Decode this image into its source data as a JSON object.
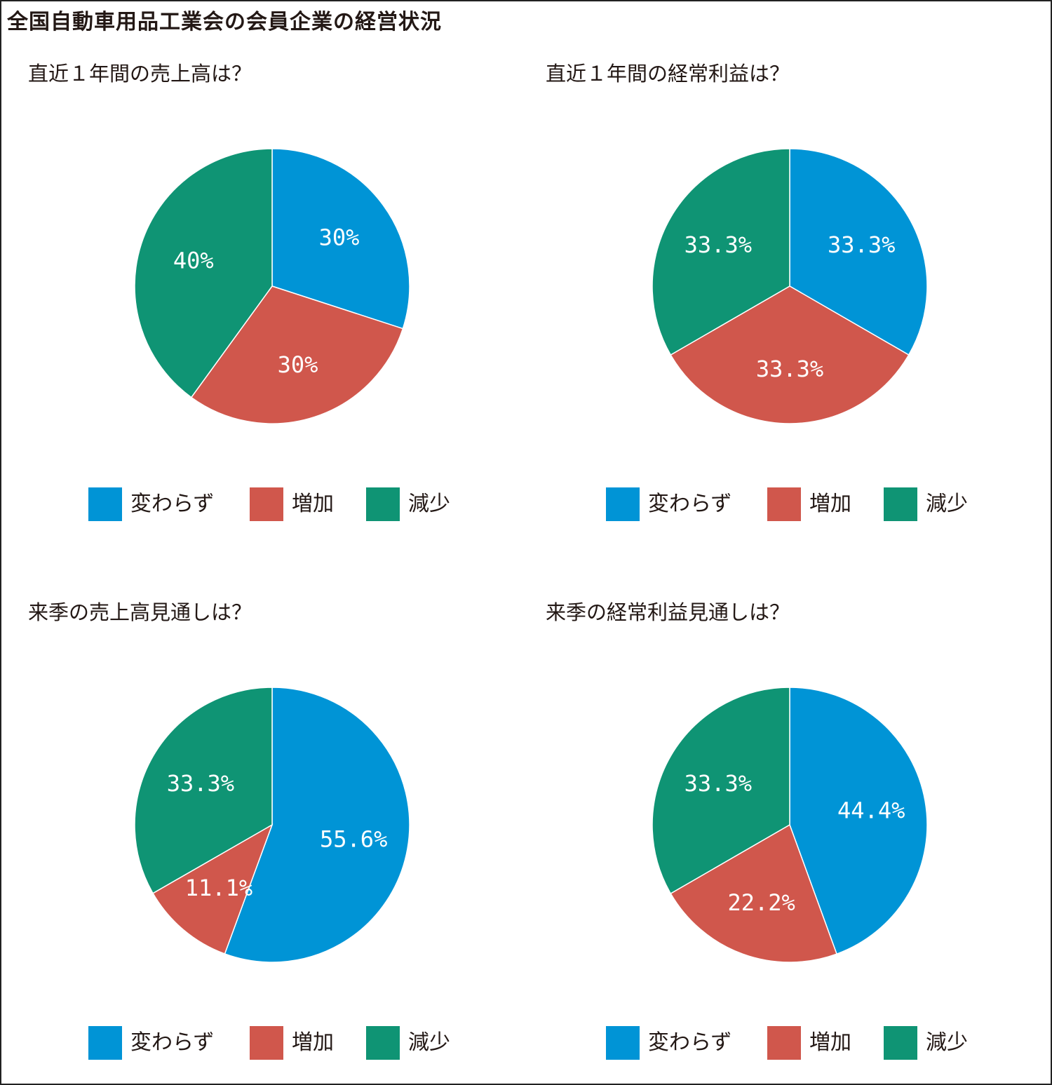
{
  "title": "全国自動車用品工業会の会員企業の経営状況",
  "colors": {
    "変わらず": "#0094d6",
    "増加": "#d0574c",
    "減少": "#0f9474"
  },
  "chart_data": [
    {
      "type": "pie",
      "title": "直近１年間の売上高は？",
      "categories": [
        "変わらず",
        "増加",
        "減少"
      ],
      "values": [
        30,
        30,
        40
      ],
      "labels": [
        "30%",
        "30%",
        "40%"
      ],
      "legend": [
        "変わらず",
        "増加",
        "減少"
      ],
      "legend_position": "bottom"
    },
    {
      "type": "pie",
      "title": "直近１年間の経常利益は？",
      "categories": [
        "変わらず",
        "増加",
        "減少"
      ],
      "values": [
        33.3,
        33.3,
        33.3
      ],
      "labels": [
        "33.3%",
        "33.3%",
        "33.3%"
      ],
      "legend": [
        "変わらず",
        "増加",
        "減少"
      ],
      "legend_position": "bottom"
    },
    {
      "type": "pie",
      "title": "来季の売上高見通しは？",
      "categories": [
        "変わらず",
        "増加",
        "減少"
      ],
      "values": [
        55.6,
        11.1,
        33.3
      ],
      "labels": [
        "55.6%",
        "11.1%",
        "33.3%"
      ],
      "legend": [
        "変わらず",
        "増加",
        "減少"
      ],
      "legend_position": "bottom"
    },
    {
      "type": "pie",
      "title": "来季の経常利益見通しは？",
      "categories": [
        "変わらず",
        "増加",
        "減少"
      ],
      "values": [
        44.4,
        22.2,
        33.3
      ],
      "labels": [
        "44.4%",
        "22.2%",
        "33.3%"
      ],
      "legend": [
        "変わらず",
        "増加",
        "減少"
      ],
      "legend_position": "bottom"
    }
  ]
}
